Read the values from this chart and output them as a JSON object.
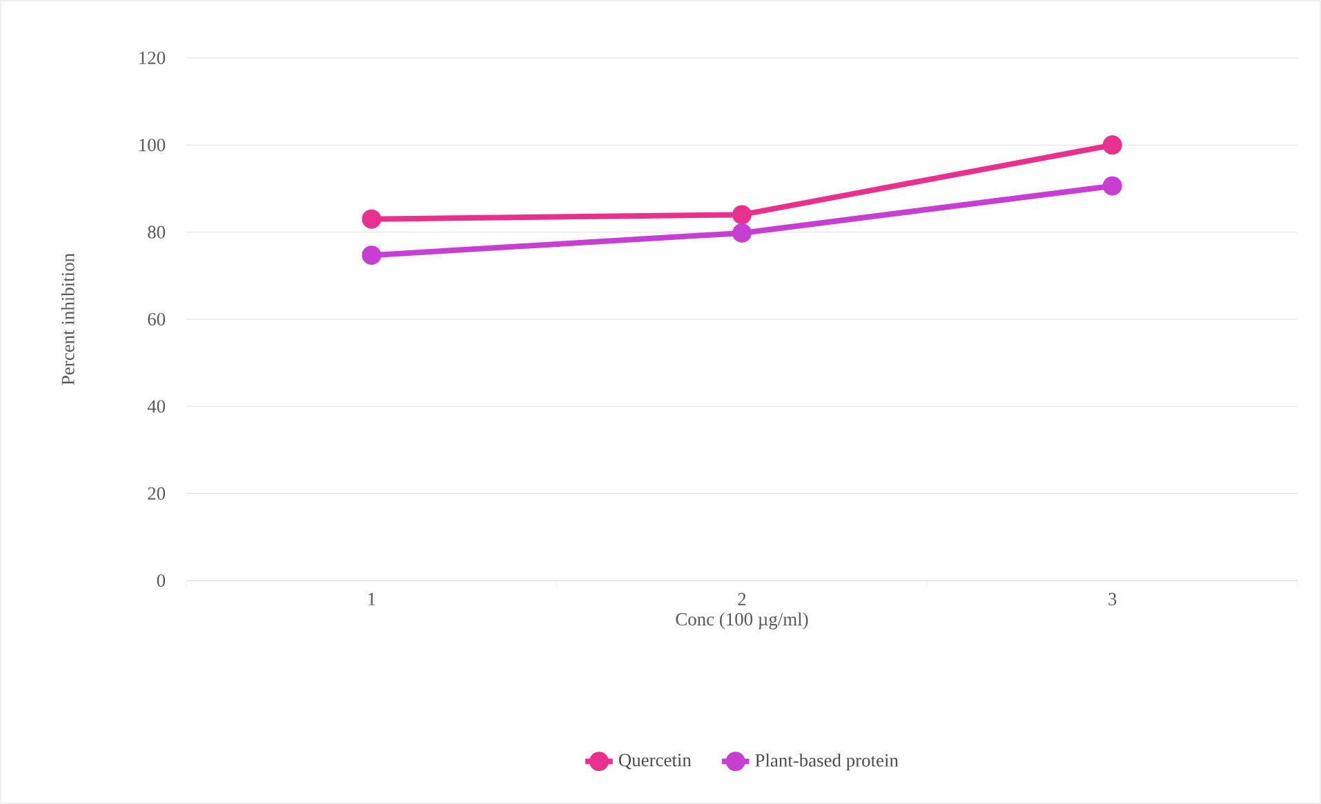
{
  "chart_data": {
    "type": "line",
    "xlabel": "Conc (100 µg/ml)",
    "ylabel": "Percent inhibition",
    "categories": [
      "1",
      "2",
      "3"
    ],
    "series": [
      {
        "name": "Quercetin",
        "color": "#e8318f",
        "values": [
          83,
          84,
          100
        ]
      },
      {
        "name": "Plant-based protein",
        "color": "#c63fd2",
        "values": [
          74.7,
          79.8,
          90.6
        ]
      }
    ],
    "ylim": [
      0,
      120
    ],
    "yticks": [
      0,
      20,
      40,
      60,
      80,
      100,
      120
    ],
    "grid": "y",
    "legend": "bottom",
    "marker": "circle",
    "line_style": "solid"
  }
}
